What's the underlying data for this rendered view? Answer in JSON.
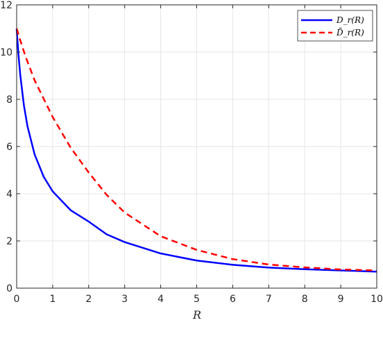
{
  "chart_data": {
    "type": "line",
    "xlabel": "R",
    "ylabel": "",
    "title": "",
    "xlim": [
      0,
      10
    ],
    "ylim": [
      0,
      12
    ],
    "xticks": [
      0,
      1,
      2,
      3,
      4,
      5,
      6,
      7,
      8,
      9,
      10
    ],
    "yticks": [
      0,
      2,
      4,
      6,
      8,
      10,
      12
    ],
    "grid": true,
    "legend_position": "top-right",
    "series": [
      {
        "name": "D_r(R)",
        "color": "#0000ff",
        "style": "solid",
        "x": [
          0,
          0.05,
          0.1,
          0.2,
          0.3,
          0.5,
          0.75,
          1,
          1.5,
          2,
          2.5,
          3,
          4,
          5,
          6,
          7,
          8,
          9,
          10
        ],
        "y": [
          10.98,
          9.9,
          9.04,
          7.76,
          6.86,
          5.66,
          4.72,
          4.1,
          3.3,
          2.82,
          2.28,
          1.95,
          1.47,
          1.17,
          0.99,
          0.87,
          0.8,
          0.75,
          0.7
        ]
      },
      {
        "name": "D̄_r(R)",
        "color": "#ff0000",
        "style": "dashed",
        "x": [
          0,
          0.1,
          0.25,
          0.5,
          1,
          1.5,
          2,
          2.5,
          3,
          4,
          5,
          6,
          7,
          8,
          9,
          10
        ],
        "y": [
          11.0,
          10.5,
          9.8,
          8.8,
          7.25,
          5.95,
          4.9,
          3.95,
          3.2,
          2.2,
          1.62,
          1.23,
          1.0,
          0.88,
          0.79,
          0.75
        ]
      }
    ]
  }
}
